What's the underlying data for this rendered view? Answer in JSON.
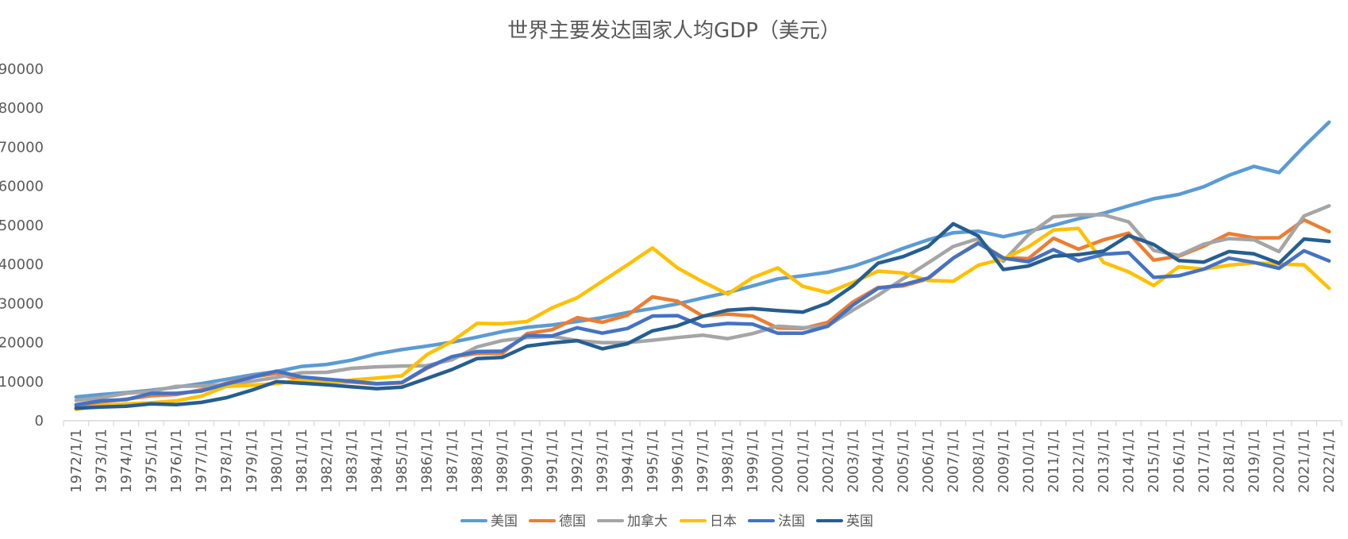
{
  "chart_data": {
    "type": "line",
    "title": "世界主要发达国家人均GDP（美元）",
    "xlabel": "",
    "ylabel": "",
    "ylim": [
      0,
      90000
    ],
    "yticks": [
      "0",
      "10000",
      "20000",
      "30000",
      "40000",
      "50000",
      "60000",
      "70000",
      "80000",
      "90000"
    ],
    "grid": false,
    "legend_position": "bottom",
    "categories": [
      "1972/1/1",
      "1973/1/1",
      "1974/1/1",
      "1975/1/1",
      "1976/1/1",
      "1977/1/1",
      "1978/1/1",
      "1979/1/1",
      "1980/1/1",
      "1981/1/1",
      "1982/1/1",
      "1983/1/1",
      "1984/1/1",
      "1985/1/1",
      "1986/1/1",
      "1987/1/1",
      "1988/1/1",
      "1989/1/1",
      "1990/1/1",
      "1991/1/1",
      "1992/1/1",
      "1993/1/1",
      "1994/1/1",
      "1995/1/1",
      "1996/1/1",
      "1997/1/1",
      "1998/1/1",
      "1999/1/1",
      "2000/1/1",
      "2001/1/1",
      "2002/1/1",
      "2003/1/1",
      "2004/1/1",
      "2005/1/1",
      "2006/1/1",
      "2007/1/1",
      "2008/1/1",
      "2009/1/1",
      "2010/1/1",
      "2011/1/1",
      "2012/1/1",
      "2013/1/1",
      "2014/1/1",
      "2015/1/1",
      "2016/1/1",
      "2017/1/1",
      "2018/1/1",
      "2019/1/1",
      "2020/1/1",
      "2021/1/1",
      "2022/1/1"
    ],
    "series": [
      {
        "name": "美国",
        "color": "#5B9BD5",
        "values": [
          6100,
          6700,
          7200,
          7800,
          8600,
          9500,
          10600,
          11700,
          12600,
          13900,
          14400,
          15500,
          17100,
          18200,
          19100,
          20100,
          21400,
          22800,
          23900,
          24500,
          25400,
          26400,
          27700,
          28700,
          29900,
          31400,
          32800,
          34500,
          36300,
          37100,
          38000,
          39500,
          41700,
          44100,
          46300,
          48100,
          48500,
          47100,
          48500,
          50000,
          51700,
          53100,
          55000,
          56800,
          57900,
          59900,
          62800,
          65100,
          63500,
          70200,
          76400
        ]
      },
      {
        "name": "德国",
        "color": "#ED7D31",
        "values": [
          3800,
          4800,
          5500,
          6400,
          6700,
          7900,
          9600,
          11200,
          12100,
          10400,
          10000,
          9900,
          9400,
          9700,
          13400,
          16300,
          17200,
          17200,
          22300,
          23300,
          26400,
          25200,
          27000,
          31700,
          30600,
          26800,
          27300,
          26800,
          23700,
          23600,
          25200,
          30400,
          34100,
          34500,
          36300,
          41600,
          45600,
          41700,
          41500,
          46700,
          43900,
          46300,
          48000,
          41100,
          42100,
          44700,
          47900,
          46800,
          46800,
          51400,
          48400
        ]
      },
      {
        "name": "加拿大",
        "color": "#A5A5A5",
        "values": [
          5200,
          5900,
          7000,
          7500,
          8800,
          8900,
          9300,
          10100,
          11100,
          12300,
          12400,
          13400,
          13800,
          14000,
          14100,
          15600,
          18900,
          20500,
          21300,
          21600,
          20500,
          20000,
          20000,
          20600,
          21300,
          21900,
          21000,
          22300,
          24200,
          23800,
          24300,
          28300,
          32100,
          36300,
          40400,
          44600,
          46600,
          40800,
          47600,
          52200,
          52700,
          52700,
          50900,
          43600,
          42300,
          45200,
          46600,
          46300,
          43300,
          52400,
          55000
        ]
      },
      {
        "name": "日本",
        "color": "#FFC000",
        "values": [
          2900,
          3900,
          4300,
          4600,
          5100,
          6300,
          8800,
          9100,
          9500,
          10400,
          9600,
          10400,
          10900,
          11500,
          16900,
          20300,
          24900,
          24800,
          25400,
          28900,
          31500,
          35700,
          39900,
          44200,
          39100,
          35600,
          32400,
          36600,
          39100,
          34400,
          32800,
          35400,
          38300,
          37800,
          35900,
          35700,
          39800,
          41400,
          44500,
          48800,
          49200,
          40500,
          38100,
          34600,
          39400,
          38800,
          39800,
          40400,
          40100,
          39900,
          33900
        ]
      },
      {
        "name": "法国",
        "color": "#4472C4",
        "values": [
          4100,
          5100,
          5400,
          7000,
          7000,
          7600,
          9400,
          11100,
          12700,
          11200,
          10600,
          10100,
          9500,
          9800,
          13600,
          16400,
          17700,
          17800,
          21800,
          21700,
          23800,
          22400,
          23600,
          26800,
          26900,
          24200,
          24900,
          24700,
          22400,
          22400,
          24200,
          29600,
          33900,
          34800,
          36500,
          41600,
          45400,
          41600,
          40700,
          43800,
          40900,
          42600,
          43000,
          36700,
          37100,
          38800,
          41600,
          40500,
          39000,
          43500,
          40900
        ]
      },
      {
        "name": "英国",
        "color": "#255E91",
        "values": [
          3200,
          3500,
          3700,
          4300,
          4100,
          4700,
          5900,
          7800,
          10000,
          9600,
          9200,
          8700,
          8200,
          8600,
          10800,
          13100,
          15900,
          16200,
          19100,
          19900,
          20500,
          18400,
          19700,
          23000,
          24300,
          26700,
          28300,
          28700,
          28200,
          27800,
          30100,
          34500,
          40300,
          42000,
          44600,
          50400,
          47300,
          38700,
          39600,
          42100,
          42500,
          43400,
          47400,
          45100,
          41000,
          40600,
          43300,
          42700,
          40300,
          46500,
          45900
        ]
      }
    ]
  }
}
